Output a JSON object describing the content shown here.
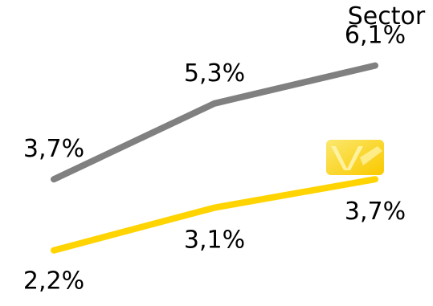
{
  "chart_data": {
    "type": "line",
    "categories": [
      "",
      "",
      ""
    ],
    "series": [
      {
        "name": "Sector",
        "values": [
          3.7,
          5.3,
          6.1
        ],
        "labels": [
          "3,7%",
          "5,3%",
          "6,1%"
        ],
        "color": "#808080"
      },
      {
        "name": "",
        "values": [
          2.2,
          3.1,
          3.7
        ],
        "labels": [
          "2,2%",
          "3,1%",
          "3,7%"
        ],
        "color": "#ffd400"
      }
    ],
    "ylim": [
      1.5,
      6.5
    ],
    "grid": false,
    "legend": [
      {
        "label": "Sector",
        "position": "top-right"
      },
      {
        "icon": "yellow-brand-logo-icon",
        "color": "#ffd400"
      }
    ]
  }
}
